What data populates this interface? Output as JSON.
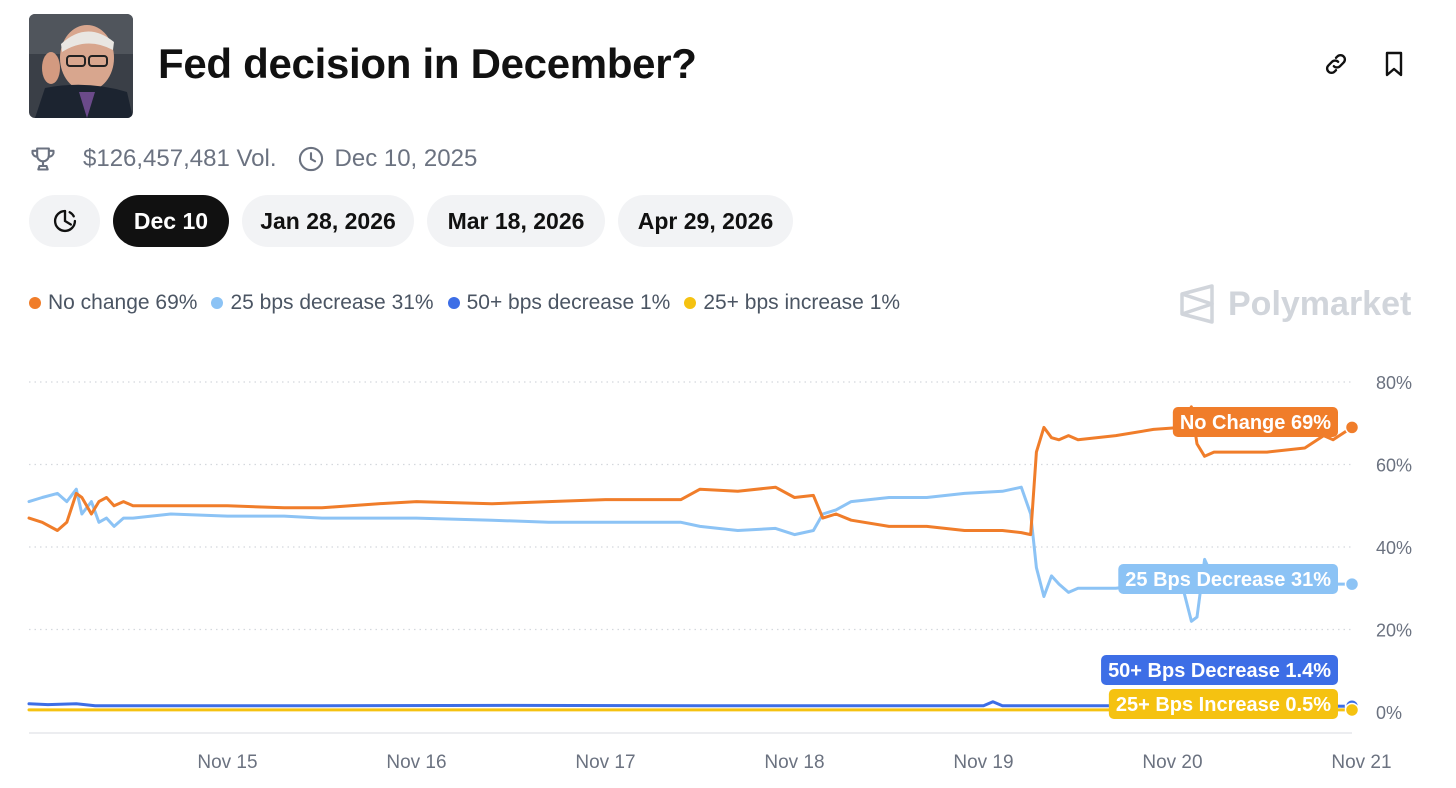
{
  "header": {
    "title": "Fed decision in December?",
    "link_icon": "link-icon",
    "bookmark_icon": "bookmark-icon"
  },
  "meta": {
    "volume": "$126,457,481 Vol.",
    "end_date": "Dec 10, 2025",
    "volume_icon": "trophy-icon",
    "date_icon": "clock-icon"
  },
  "tabs": [
    {
      "label": "Dec 10",
      "active": true
    },
    {
      "label": "Jan 28, 2026",
      "active": false
    },
    {
      "label": "Mar 18, 2026",
      "active": false
    },
    {
      "label": "Apr 29, 2026",
      "active": false
    }
  ],
  "legend": [
    {
      "label": "No change 69%",
      "color": "#f07d2a"
    },
    {
      "label": "25 bps decrease 31%",
      "color": "#8cc3f5"
    },
    {
      "label": "50+ bps decrease 1%",
      "color": "#3d6ee6"
    },
    {
      "label": "25+ bps increase 1%",
      "color": "#f5c211"
    }
  ],
  "brand": "Polymarket",
  "chart_data": {
    "type": "line",
    "x_ticks": [
      "Nov 15",
      "Nov 16",
      "Nov 17",
      "Nov 18",
      "Nov 19",
      "Nov 20",
      "Nov 21"
    ],
    "x_range": [
      14.45,
      21.45
    ],
    "y_ticks": [
      "0%",
      "20%",
      "40%",
      "60%",
      "80%"
    ],
    "y_tick_values": [
      0,
      20,
      40,
      60,
      80
    ],
    "ylim": [
      0,
      80
    ],
    "grid": true,
    "series": [
      {
        "name": "No change",
        "end_label": "No Change 69%",
        "color": "#f07d2a",
        "x": [
          14.45,
          14.52,
          14.6,
          14.65,
          14.7,
          14.73,
          14.78,
          14.82,
          14.86,
          14.9,
          14.95,
          15.0,
          15.2,
          15.5,
          15.8,
          16.0,
          16.3,
          16.5,
          16.9,
          17.2,
          17.5,
          17.7,
          17.9,
          18.0,
          18.2,
          18.4,
          18.5,
          18.6,
          18.65,
          18.72,
          18.8,
          19.0,
          19.2,
          19.4,
          19.6,
          19.7,
          19.75,
          19.78,
          19.82,
          19.86,
          19.9,
          19.95,
          20.0,
          20.2,
          20.4,
          20.55,
          20.6,
          20.63,
          20.67,
          20.72,
          20.8,
          21.0,
          21.2,
          21.3,
          21.35,
          21.45
        ],
        "y": [
          47,
          46,
          44,
          46,
          53,
          52,
          48,
          51,
          52,
          50,
          51,
          50,
          50,
          50,
          49.5,
          49.5,
          50.5,
          51,
          50.5,
          51,
          51.5,
          51.5,
          51.5,
          54,
          53.5,
          54.5,
          52,
          52.5,
          47,
          48,
          46.5,
          45,
          45,
          44,
          44,
          43.5,
          43,
          63,
          69,
          66.5,
          66,
          67,
          66,
          67,
          68.5,
          69,
          74,
          65,
          62,
          63,
          63,
          63,
          64,
          67,
          66,
          69
        ]
      },
      {
        "name": "25 bps decrease",
        "end_label": "25 Bps Decrease 31%",
        "color": "#8cc3f5",
        "x": [
          14.45,
          14.52,
          14.6,
          14.65,
          14.7,
          14.73,
          14.78,
          14.82,
          14.86,
          14.9,
          14.95,
          15.0,
          15.2,
          15.5,
          15.8,
          16.0,
          16.3,
          16.5,
          16.9,
          17.2,
          17.5,
          17.7,
          17.9,
          18.0,
          18.2,
          18.4,
          18.5,
          18.6,
          18.65,
          18.72,
          18.8,
          19.0,
          19.2,
          19.4,
          19.6,
          19.7,
          19.75,
          19.78,
          19.82,
          19.86,
          19.9,
          19.95,
          20.0,
          20.2,
          20.4,
          20.55,
          20.6,
          20.63,
          20.67,
          20.72,
          20.8,
          21.0,
          21.2,
          21.3,
          21.35,
          21.45
        ],
        "y": [
          51,
          52,
          53,
          51,
          54,
          48,
          51,
          46,
          47,
          45,
          47,
          47,
          48,
          47.5,
          47.5,
          47,
          47,
          47,
          46.5,
          46,
          46,
          46,
          46,
          45,
          44,
          44.5,
          43,
          44,
          48,
          49,
          51,
          52,
          52,
          53,
          53.5,
          54.5,
          48,
          35,
          28,
          33,
          31,
          29,
          30,
          30,
          31,
          31,
          22,
          23,
          37,
          32,
          30,
          31,
          31,
          31,
          31,
          31
        ]
      },
      {
        "name": "50+ bps decrease",
        "end_label": "50+ Bps Decrease 1.4%",
        "color": "#3d6ee6",
        "x": [
          14.45,
          14.55,
          14.7,
          14.8,
          15.0,
          16.0,
          17.0,
          18.0,
          19.0,
          19.5,
          19.55,
          19.6,
          20.0,
          20.5,
          21.0,
          21.45
        ],
        "y": [
          2,
          1.8,
          2,
          1.5,
          1.5,
          1.5,
          1.6,
          1.5,
          1.5,
          1.5,
          2.5,
          1.5,
          1.5,
          1.5,
          1.5,
          1.4
        ]
      },
      {
        "name": "25+ bps increase",
        "end_label": "25+ Bps Increase 0.5%",
        "color": "#f5c211",
        "x": [
          14.45,
          16.0,
          18.0,
          20.0,
          21.45
        ],
        "y": [
          0.5,
          0.5,
          0.5,
          0.5,
          0.5
        ]
      }
    ]
  }
}
